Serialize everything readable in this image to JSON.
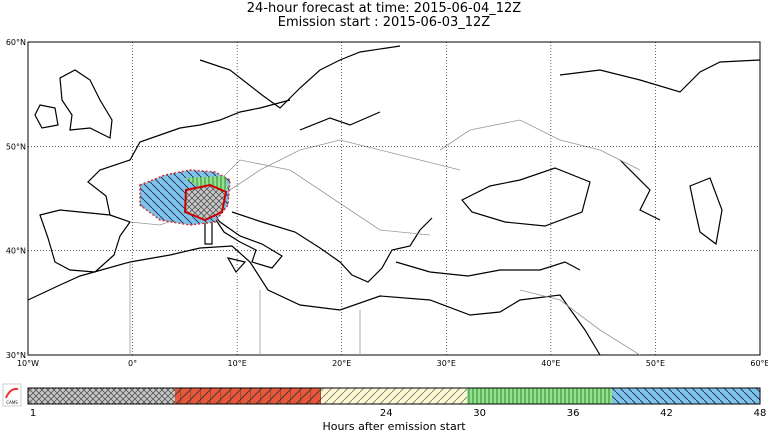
{
  "header": {
    "title": "24-hour forecast at time: 2015-06-04_12Z",
    "subtitle": "Emission start : 2015-06-03_12Z"
  },
  "map": {
    "lat_labels": [
      "60°N",
      "50°N",
      "40°N",
      "30°N"
    ],
    "lon_labels": [
      "10°W",
      "0°",
      "10°E",
      "20°E",
      "30°E",
      "40°E",
      "50°E",
      "60°E"
    ]
  },
  "legend": {
    "ticks": [
      1,
      24,
      30,
      36,
      42,
      48
    ],
    "label": "Hours after emission start",
    "logo": "CAMS"
  }
}
